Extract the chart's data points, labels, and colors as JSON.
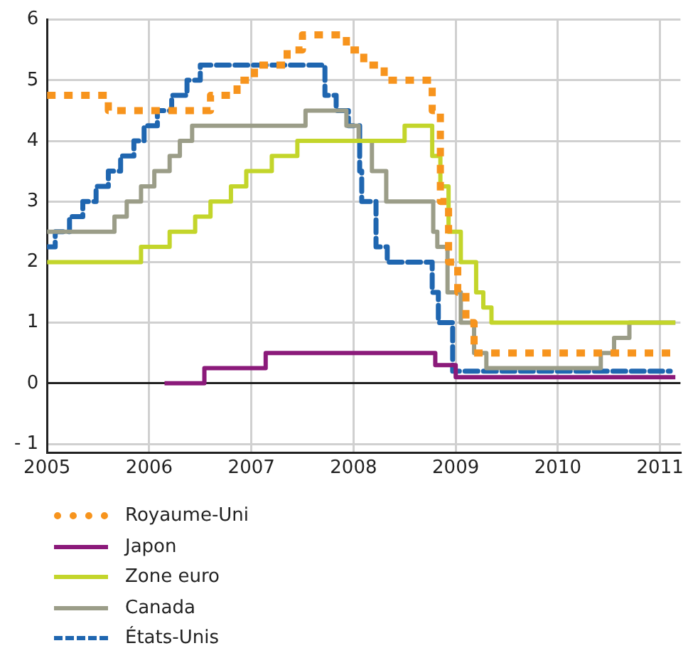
{
  "chart_data": {
    "type": "step",
    "xlim": [
      2005,
      2011.2
    ],
    "xticks": [
      2005,
      2006,
      2007,
      2008,
      2009,
      2010,
      2011
    ],
    "ylim": [
      -1.15,
      6
    ],
    "yticks": [
      {
        "value": -1,
        "label": "- 1"
      },
      0,
      1,
      2,
      3,
      4,
      5,
      6
    ],
    "grid": true,
    "legend": "bottom",
    "series": [
      {
        "name": "Royaume-Uni",
        "color": "#f7941d",
        "line_style": "dotted",
        "x": [
          2005,
          2005.6,
          2006.6,
          2006.86,
          2007.03,
          2007.35,
          2007.5,
          2007.93,
          2008.1,
          2008.3,
          2008.77,
          2008.85,
          2008.93,
          2009.02,
          2009.1,
          2009.18,
          2011.1
        ],
        "values": [
          4.75,
          4.5,
          4.75,
          5,
          5.25,
          5.5,
          5.75,
          5.5,
          5.25,
          5,
          4.5,
          3,
          2,
          1.5,
          1,
          0.5,
          0.5
        ]
      },
      {
        "name": "Japon",
        "color": "#8b1a7a",
        "line_style": "solid",
        "x": [
          2006.15,
          2006.54,
          2007.14,
          2008.8,
          2009,
          2011.15
        ],
        "values": [
          0,
          0.25,
          0.5,
          0.3,
          0.1,
          0.1
        ]
      },
      {
        "name": "Zone euro",
        "color": "#c3d52b",
        "line_style": "solid",
        "x": [
          2005,
          2005.92,
          2006.2,
          2006.45,
          2006.6,
          2006.8,
          2006.95,
          2007.2,
          2007.45,
          2008.5,
          2008.77,
          2008.85,
          2008.93,
          2009.05,
          2009.2,
          2009.27,
          2009.35,
          2011.15
        ],
        "values": [
          2,
          2.25,
          2.5,
          2.75,
          3,
          3.25,
          3.5,
          3.75,
          4,
          4.25,
          3.75,
          3.25,
          2.5,
          2,
          1.5,
          1.25,
          1,
          1
        ]
      },
      {
        "name": "Canada",
        "color": "#9b9d88",
        "line_style": "solid",
        "x": [
          2005,
          2005.66,
          2005.78,
          2005.92,
          2006.05,
          2006.2,
          2006.3,
          2006.42,
          2007.53,
          2007.93,
          2008.05,
          2008.18,
          2008.32,
          2008.78,
          2008.82,
          2008.92,
          2009.05,
          2009.18,
          2009.3,
          2010.42,
          2010.55,
          2010.7,
          2011.15
        ],
        "values": [
          2.5,
          2.75,
          3,
          3.25,
          3.5,
          3.75,
          4,
          4.25,
          4.5,
          4.25,
          4,
          3.5,
          3,
          2.5,
          2.25,
          1.5,
          1,
          0.5,
          0.25,
          0.5,
          0.75,
          1,
          1
        ]
      },
      {
        "name": "États-Unis",
        "color": "#1f66b0",
        "line_style": "dashed",
        "x": [
          2005,
          2005.08,
          2005.22,
          2005.35,
          2005.48,
          2005.6,
          2005.72,
          2005.85,
          2005.95,
          2006.08,
          2006.22,
          2006.37,
          2006.5,
          2007.72,
          2007.83,
          2007.95,
          2008.06,
          2008.08,
          2008.22,
          2008.33,
          2008.77,
          2008.83,
          2008.97,
          2011.1
        ],
        "values": [
          2.25,
          2.5,
          2.75,
          3,
          3.25,
          3.5,
          3.75,
          4,
          4.25,
          4.5,
          4.75,
          5,
          5.25,
          4.75,
          4.5,
          4.25,
          3.5,
          3,
          2.25,
          2,
          1.5,
          1,
          0.2,
          0.2
        ]
      }
    ]
  }
}
